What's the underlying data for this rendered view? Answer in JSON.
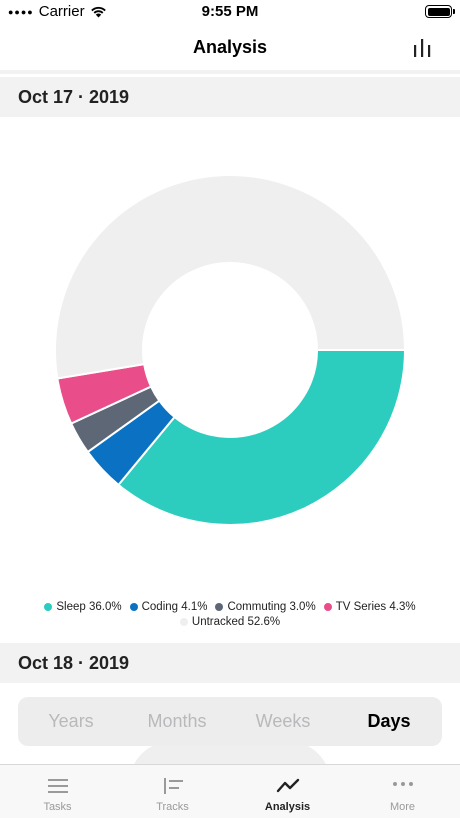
{
  "status": {
    "carrier": "Carrier",
    "time": "9:55 PM"
  },
  "nav": {
    "title": "Analysis",
    "action_icon": "bar-chart-icon"
  },
  "sections": {
    "first": "Oct 17 · 2019",
    "second": "Oct 18 · 2019"
  },
  "chart_data": {
    "type": "pie",
    "donut": true,
    "slices": [
      {
        "label": "Sleep",
        "percent": 36.0,
        "color": "#2ccdbe"
      },
      {
        "label": "Coding",
        "percent": 4.1,
        "color": "#0b72c3"
      },
      {
        "label": "Commuting",
        "percent": 3.0,
        "color": "#5d6776"
      },
      {
        "label": "TV Series",
        "percent": 4.3,
        "color": "#e94e8a"
      },
      {
        "label": "Untracked",
        "percent": 52.6,
        "color": "#efefef"
      }
    ],
    "legend": [
      "Sleep 36.0%",
      "Coding 4.1%",
      "Commuting 3.0%",
      "TV Series 4.3%",
      "Untracked 52.6%"
    ]
  },
  "segmented": {
    "options": [
      "Years",
      "Months",
      "Weeks",
      "Days"
    ],
    "selected": "Days"
  },
  "tabs": [
    {
      "label": "Tasks",
      "icon": "list-icon",
      "active": false
    },
    {
      "label": "Tracks",
      "icon": "tracks-icon",
      "active": false
    },
    {
      "label": "Analysis",
      "icon": "trend-line-icon",
      "active": true
    },
    {
      "label": "More",
      "icon": "more-dots-icon",
      "active": false
    }
  ],
  "colors": {
    "accent": "#2ccdbe",
    "header_bg": "#f2f2f3"
  }
}
